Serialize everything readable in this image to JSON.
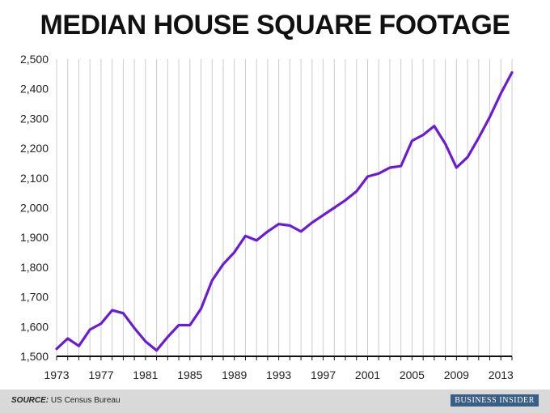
{
  "chart_data": {
    "type": "line",
    "title": "MEDIAN HOUSE SQUARE FOOTAGE",
    "xlabel": "",
    "ylabel": "",
    "xlim": [
      1973,
      2014
    ],
    "ylim": [
      1500,
      2500
    ],
    "x_ticks": [
      1973,
      1977,
      1981,
      1985,
      1989,
      1993,
      1997,
      2001,
      2005,
      2009,
      2013
    ],
    "y_ticks": [
      1500,
      1600,
      1700,
      1800,
      1900,
      2000,
      2100,
      2200,
      2300,
      2400,
      2500
    ],
    "y_tick_labels": [
      "1,500",
      "1,600",
      "1,700",
      "1,800",
      "1,900",
      "2,000",
      "2,100",
      "2,200",
      "2,300",
      "2,400",
      "2,500"
    ],
    "grid": "vertical",
    "line_color": "#6a1bd6",
    "series": [
      {
        "name": "",
        "x": [
          1973,
          1974,
          1975,
          1976,
          1977,
          1978,
          1979,
          1980,
          1981,
          1982,
          1983,
          1984,
          1985,
          1986,
          1987,
          1988,
          1989,
          1990,
          1991,
          1992,
          1993,
          1994,
          1995,
          1996,
          1997,
          1998,
          1999,
          2000,
          2001,
          2002,
          2003,
          2004,
          2005,
          2006,
          2007,
          2008,
          2009,
          2010,
          2011,
          2012,
          2013,
          2014
        ],
        "values": [
          1525,
          1560,
          1535,
          1590,
          1610,
          1655,
          1645,
          1595,
          1550,
          1520,
          1565,
          1605,
          1605,
          1660,
          1755,
          1810,
          1850,
          1905,
          1890,
          1920,
          1945,
          1940,
          1920,
          1950,
          1975,
          2000,
          2025,
          2055,
          2105,
          2115,
          2135,
          2140,
          2225,
          2245,
          2275,
          2215,
          2135,
          2170,
          2235,
          2305,
          2385,
          2455
        ]
      }
    ]
  },
  "footer": {
    "source_label": "SOURCE:",
    "source_text": " US Census Bureau",
    "brand": "BUSINESS INSIDER",
    "background": "#d9d9d9",
    "brand_background": "#3a5f86"
  }
}
